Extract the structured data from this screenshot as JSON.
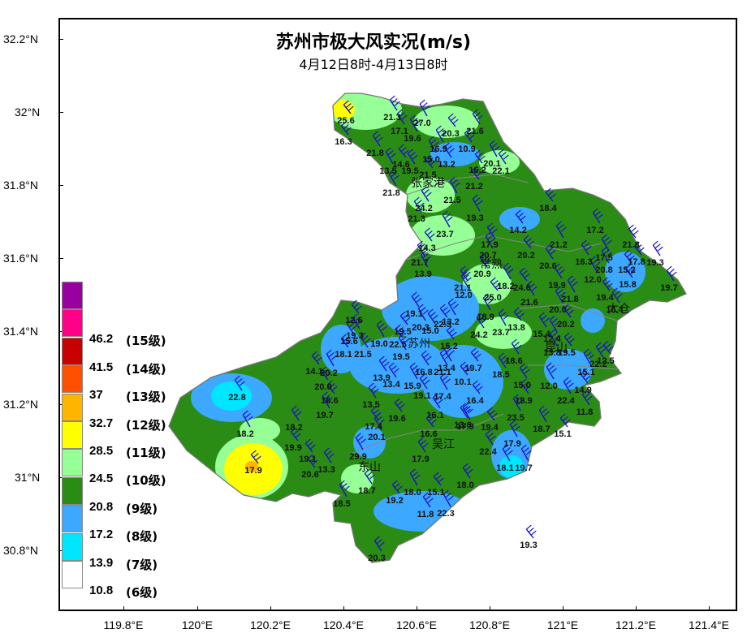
{
  "title": "苏州市极大风实况(m/s)",
  "subtitle": "4月12日8时-4月13日8时",
  "lat_ticks": [
    "32.2°N",
    "32°N",
    "31.8°N",
    "31.6°N",
    "31.4°N",
    "31.2°N",
    "31°N",
    "30.8°N"
  ],
  "lon_ticks": [
    "119.8°E",
    "120°E",
    "120.2°E",
    "120.4°E",
    "120.6°E",
    "120.8°E",
    "121°E",
    "121.2°E",
    "121.4°E"
  ],
  "legend": [
    {
      "value": "",
      "level": "",
      "color": "#9900a0"
    },
    {
      "value": "46.2",
      "level": "(15级)",
      "color": "#ff0088"
    },
    {
      "value": "41.5",
      "level": "(14级)",
      "color": "#c80000"
    },
    {
      "value": "37",
      "level": "(13级)",
      "color": "#ff5000"
    },
    {
      "value": "32.7",
      "level": "(12级)",
      "color": "#ffb400"
    },
    {
      "value": "28.5",
      "level": "(11级)",
      "color": "#ffff00"
    },
    {
      "value": "24.5",
      "level": "(10级)",
      "color": "#96ff96"
    },
    {
      "value": "20.8",
      "level": "(9级)",
      "color": "#2a8c14"
    },
    {
      "value": "17.2",
      "level": "(8级)",
      "color": "#3ca8ff"
    },
    {
      "value": "13.9",
      "level": "(7级)",
      "color": "#00e6ff"
    },
    {
      "value": "10.8",
      "level": "(6级)",
      "color": "#ffffff"
    }
  ],
  "cities": [
    "张家港",
    "常熟",
    "昆山",
    "太仓",
    "苏州",
    "吴江",
    "东山"
  ],
  "station_values": [
    "25.6",
    "21.3",
    "27.0",
    "16.3",
    "17.1",
    "19.6",
    "20.3",
    "21.6",
    "16.9",
    "10.9",
    "21.8",
    "13.5",
    "14.6",
    "19.5",
    "15.0",
    "21.5",
    "13.2",
    "20.1",
    "16.2",
    "22.1",
    "21.8",
    "21.2",
    "24.2",
    "21.5",
    "18.4",
    "21.3",
    "19.3",
    "14.2",
    "17.2",
    "23.7",
    "14.3",
    "17.9",
    "21.2",
    "21.8",
    "21.7",
    "20.7",
    "20.2",
    "16.3",
    "17.5",
    "17.8",
    "19.3",
    "13.9",
    "20.9",
    "20.6",
    "20.8",
    "15.2",
    "21.1",
    "18.2",
    "24.6",
    "19.9",
    "12.0",
    "15.8",
    "19.7",
    "12.0",
    "25.0",
    "21.6",
    "21.8",
    "19.4",
    "16.4",
    "20.0",
    "12.6",
    "19.1",
    "18.9",
    "20.2",
    "19.3",
    "20.3",
    "22.3",
    "24.2",
    "23.7",
    "19.5",
    "15.0",
    "13.2",
    "22.5",
    "15.6",
    "19.0",
    "13.8",
    "15.4",
    "12.4",
    "18.1",
    "21.5",
    "19.5",
    "15.2",
    "18.6",
    "13.8",
    "19.5",
    "22.2",
    "20.2",
    "14.1",
    "13.9",
    "13.4",
    "19.7",
    "18.5",
    "15.1",
    "12.5",
    "16.8",
    "21.1",
    "10.1",
    "15.0",
    "12.0",
    "14.9",
    "13.4",
    "15.9",
    "20.0",
    "19.1",
    "17.4",
    "16.4",
    "18.9",
    "22.4",
    "16.6",
    "13.5",
    "18.2",
    "19.6",
    "16.1",
    "19.7",
    "17.4",
    "11.8",
    "17.9",
    "19.4",
    "22.8",
    "18.7",
    "15.1",
    "18.2",
    "20.1",
    "16.6",
    "13.6",
    "17.9",
    "19.9",
    "22.4",
    "18.1",
    "19.1",
    "13.3",
    "29.9",
    "20.6",
    "17.9",
    "19.7",
    "17.9",
    "18.7",
    "18.0",
    "15.1",
    "18.0",
    "18.5",
    "19.2",
    "11.8",
    "22.3",
    "19.3",
    "20.3",
    "23.5"
  ]
}
